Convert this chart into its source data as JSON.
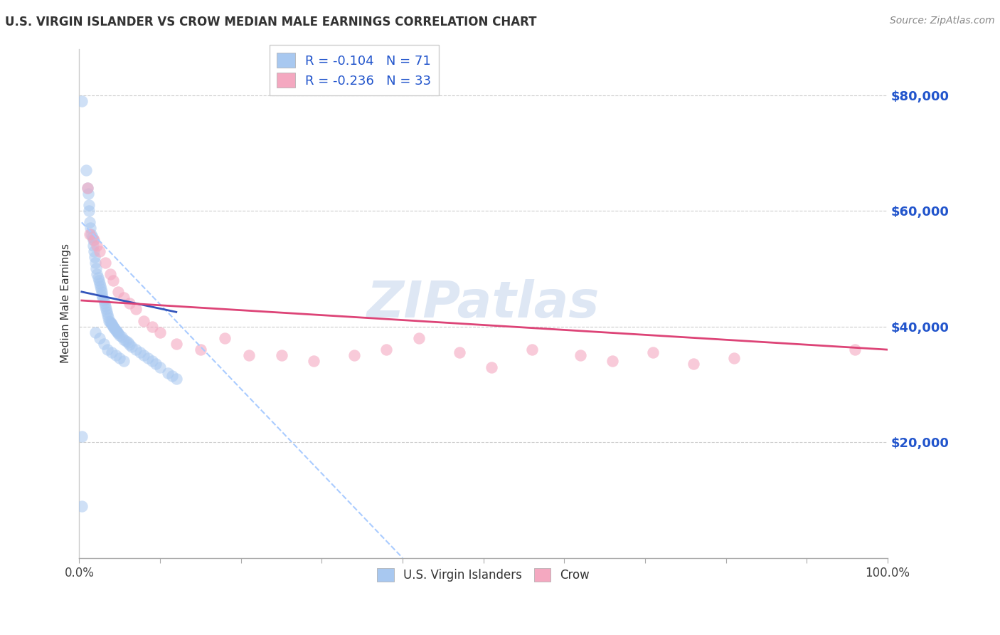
{
  "title": "U.S. VIRGIN ISLANDER VS CROW MEDIAN MALE EARNINGS CORRELATION CHART",
  "source": "Source: ZipAtlas.com",
  "ylabel": "Median Male Earnings",
  "yticks": [
    20000,
    40000,
    60000,
    80000
  ],
  "ytick_labels": [
    "$20,000",
    "$40,000",
    "$60,000",
    "$80,000"
  ],
  "ylim": [
    0,
    88000
  ],
  "xlim": [
    0.0,
    1.0
  ],
  "watermark": "ZIPatlas",
  "blue_color": "#a8c8f0",
  "pink_color": "#f4a8c0",
  "blue_scatter_alpha": 0.55,
  "pink_scatter_alpha": 0.6,
  "blue_line_color": "#3355bb",
  "pink_line_color": "#dd4477",
  "dashed_line_color": "#aaccff",
  "legend1_label1": "R = -0.104   N = 71",
  "legend1_label2": "R = -0.236   N = 33",
  "legend2_label1": "U.S. Virgin Islanders",
  "legend2_label2": "Crow",
  "blue_scatter_x": [
    0.003,
    0.008,
    0.01,
    0.011,
    0.012,
    0.012,
    0.013,
    0.014,
    0.015,
    0.016,
    0.017,
    0.017,
    0.018,
    0.019,
    0.02,
    0.021,
    0.022,
    0.023,
    0.024,
    0.025,
    0.026,
    0.027,
    0.028,
    0.028,
    0.029,
    0.03,
    0.031,
    0.032,
    0.033,
    0.034,
    0.035,
    0.036,
    0.037,
    0.038,
    0.039,
    0.04,
    0.041,
    0.042,
    0.043,
    0.044,
    0.045,
    0.046,
    0.047,
    0.048,
    0.05,
    0.052,
    0.055,
    0.058,
    0.06,
    0.062,
    0.065,
    0.07,
    0.075,
    0.08,
    0.085,
    0.09,
    0.095,
    0.1,
    0.11,
    0.115,
    0.12,
    0.003,
    0.003,
    0.02,
    0.025,
    0.03,
    0.035,
    0.04,
    0.045,
    0.05,
    0.055
  ],
  "blue_scatter_y": [
    79000,
    67000,
    64000,
    63000,
    61000,
    60000,
    58000,
    57000,
    56000,
    55500,
    55000,
    54000,
    53000,
    52000,
    51000,
    50000,
    49000,
    48500,
    48000,
    47500,
    47000,
    46500,
    46000,
    45500,
    45000,
    44500,
    44000,
    43500,
    43000,
    42500,
    42000,
    41500,
    41000,
    40800,
    40600,
    40400,
    40200,
    40000,
    39800,
    39600,
    39400,
    39200,
    39000,
    38800,
    38500,
    38200,
    37800,
    37500,
    37200,
    36900,
    36500,
    36000,
    35500,
    35000,
    34500,
    34000,
    33500,
    33000,
    32000,
    31500,
    31000,
    21000,
    9000,
    39000,
    38000,
    37000,
    36000,
    35500,
    35000,
    34500,
    34000
  ],
  "pink_scatter_x": [
    0.01,
    0.013,
    0.018,
    0.022,
    0.025,
    0.032,
    0.038,
    0.042,
    0.048,
    0.055,
    0.062,
    0.07,
    0.08,
    0.09,
    0.1,
    0.12,
    0.15,
    0.18,
    0.21,
    0.25,
    0.29,
    0.34,
    0.38,
    0.42,
    0.47,
    0.51,
    0.56,
    0.62,
    0.66,
    0.71,
    0.76,
    0.81,
    0.96
  ],
  "pink_scatter_y": [
    64000,
    56000,
    55000,
    54000,
    53000,
    51000,
    49000,
    48000,
    46000,
    45000,
    44000,
    43000,
    41000,
    40000,
    39000,
    37000,
    36000,
    38000,
    35000,
    35000,
    34000,
    35000,
    36000,
    38000,
    35500,
    33000,
    36000,
    35000,
    34000,
    35500,
    33500,
    34500,
    36000
  ],
  "blue_line_x": [
    0.003,
    0.12
  ],
  "blue_line_y": [
    46000,
    42500
  ],
  "pink_line_x": [
    0.003,
    1.0
  ],
  "pink_line_y": [
    44500,
    36000
  ],
  "dashed_line_x": [
    0.003,
    0.4
  ],
  "dashed_line_y": [
    58000,
    0
  ],
  "xtick_positions": [
    0.0,
    0.1,
    0.2,
    0.3,
    0.4,
    0.5,
    0.6,
    0.7,
    0.8,
    0.9,
    1.0
  ],
  "xtick_labels_show": [
    "0.0%",
    "",
    "",
    "",
    "",
    "",
    "",
    "",
    "",
    "",
    "100.0%"
  ]
}
